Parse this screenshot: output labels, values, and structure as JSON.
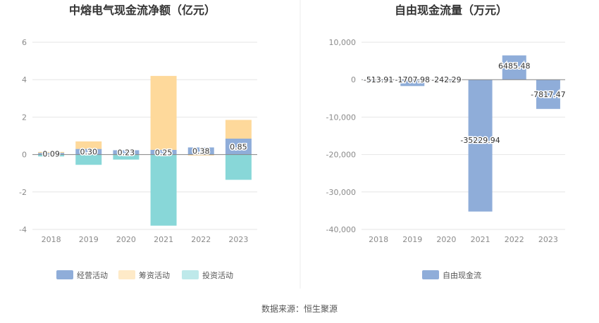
{
  "chart_data": [
    {
      "type": "bar",
      "stacked": true,
      "title": "中熔电气现金流净额（亿元）",
      "categories": [
        "2018",
        "2019",
        "2020",
        "2021",
        "2022",
        "2023"
      ],
      "series": [
        {
          "name": "经营活动",
          "color": "#8fadd9",
          "values": [
            0.09,
            0.3,
            0.23,
            0.25,
            0.38,
            0.85
          ]
        },
        {
          "name": "筹资活动",
          "color": "#fed99b",
          "values": [
            0.05,
            0.4,
            -0.02,
            3.95,
            -0.05,
            1.0
          ]
        },
        {
          "name": "投资活动",
          "color": "#88d7d8",
          "values": [
            -0.1,
            -0.55,
            -0.25,
            -3.8,
            0.0,
            -1.35
          ]
        }
      ],
      "data_labels": [
        "0.09",
        "0.30",
        "0.23",
        "0.25",
        "0.38",
        "0.85"
      ],
      "yticks": [
        "6",
        "4",
        "2",
        "0",
        "-2",
        "-4"
      ],
      "ylim": [
        -4,
        6
      ],
      "legend_position": "bottom"
    },
    {
      "type": "bar",
      "title": "自由现金流量（万元）",
      "categories": [
        "2018",
        "2019",
        "2020",
        "2021",
        "2022",
        "2023"
      ],
      "series": [
        {
          "name": "自由现金流",
          "color": "#8fadd9",
          "values": [
            -513.91,
            -1707.98,
            -242.29,
            -35229.94,
            6485.48,
            -7817.47
          ]
        }
      ],
      "data_labels": [
        "-513.91",
        "-1707.98",
        "-242.29",
        "-35229.94",
        "6485.48",
        "-7817.47"
      ],
      "yticks": [
        "10,000",
        "0",
        "-10,000",
        "-20,000",
        "-30,000",
        "-40,000"
      ],
      "ylim": [
        -40000,
        10000
      ],
      "legend_position": "bottom"
    }
  ],
  "source_note": "数据来源：恒生聚源"
}
